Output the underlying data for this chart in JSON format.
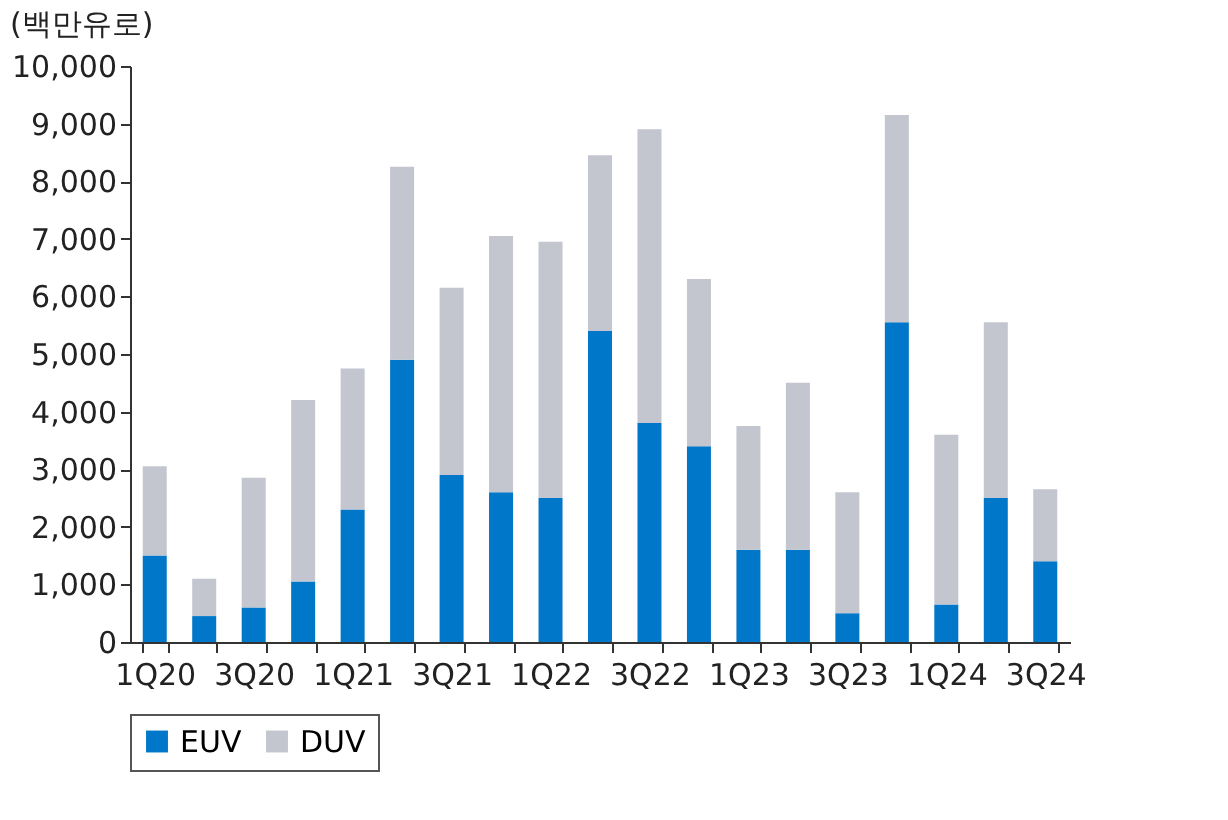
{
  "chart_data": {
    "type": "bar",
    "stacked": true,
    "ylabel": "(백만유로)",
    "categories": [
      "1Q20",
      null,
      "3Q20",
      null,
      "1Q21",
      null,
      "3Q21",
      null,
      "1Q22",
      null,
      "3Q22",
      null,
      "1Q23",
      null,
      "3Q23",
      null,
      "1Q24",
      null,
      "3Q24"
    ],
    "series": [
      {
        "name": "EUV",
        "color": "#0077c8",
        "values": [
          1500,
          450,
          600,
          1050,
          2300,
          4900,
          2900,
          2600,
          2500,
          5400,
          3800,
          3400,
          1600,
          1600,
          500,
          5550,
          650,
          2500,
          1400
        ]
      },
      {
        "name": "DUV",
        "color": "#c3c5cf",
        "values": [
          1550,
          650,
          2250,
          3150,
          2450,
          3350,
          3250,
          4450,
          4450,
          3050,
          5100,
          2900,
          2150,
          2900,
          2100,
          3600,
          2950,
          3050,
          1250
        ]
      }
    ],
    "ylim": [
      0,
      10000
    ],
    "yticks": [
      0,
      {
        "value": 1000,
        "label": "1,000"
      },
      {
        "value": 2000,
        "label": "2,000"
      },
      {
        "value": 3000,
        "label": "3,000"
      },
      {
        "value": 4000,
        "label": "4,000"
      },
      {
        "value": 5000,
        "label": "5,000"
      },
      {
        "value": 6000,
        "label": "6,000"
      },
      {
        "value": 7000,
        "label": "7,000"
      },
      {
        "value": 8000,
        "label": "8,000"
      },
      {
        "value": 9000,
        "label": "9,000"
      },
      {
        "value": 10000,
        "label": "10,000"
      }
    ],
    "grid": false,
    "legend": "bottom"
  }
}
